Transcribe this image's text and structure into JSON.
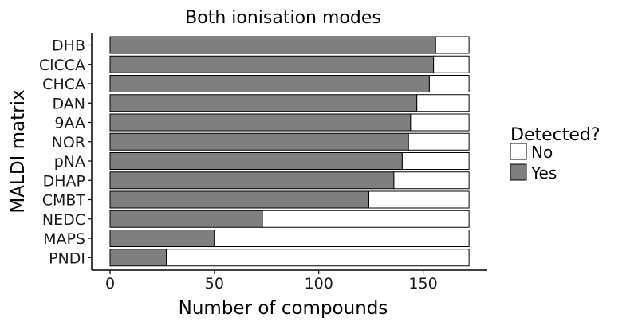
{
  "chart_data": {
    "type": "bar",
    "orientation": "horizontal",
    "stacked": true,
    "title": "Both ionisation modes",
    "xlabel": "Number of compounds",
    "ylabel": "MALDI matrix",
    "xlim": [
      0,
      172
    ],
    "x_ticks": [
      0,
      50,
      100,
      150
    ],
    "grid": false,
    "legend": {
      "title": "Detected?",
      "position": "right",
      "entries": [
        {
          "name": "No",
          "color": "#ffffff"
        },
        {
          "name": "Yes",
          "color": "#7f7f7f"
        }
      ]
    },
    "categories": [
      "DHB",
      "ClCCA",
      "CHCA",
      "DAN",
      "9AA",
      "NOR",
      "pNA",
      "DHAP",
      "CMBT",
      "NEDC",
      "MAPS",
      "PNDI"
    ],
    "series": [
      {
        "name": "Yes",
        "color": "#7f7f7f",
        "values": [
          156,
          155,
          153,
          147,
          144,
          143,
          140,
          136,
          124,
          73,
          50,
          27
        ]
      },
      {
        "name": "No",
        "color": "#ffffff",
        "values": [
          16,
          17,
          19,
          25,
          28,
          29,
          32,
          36,
          48,
          99,
          122,
          145
        ]
      }
    ]
  }
}
